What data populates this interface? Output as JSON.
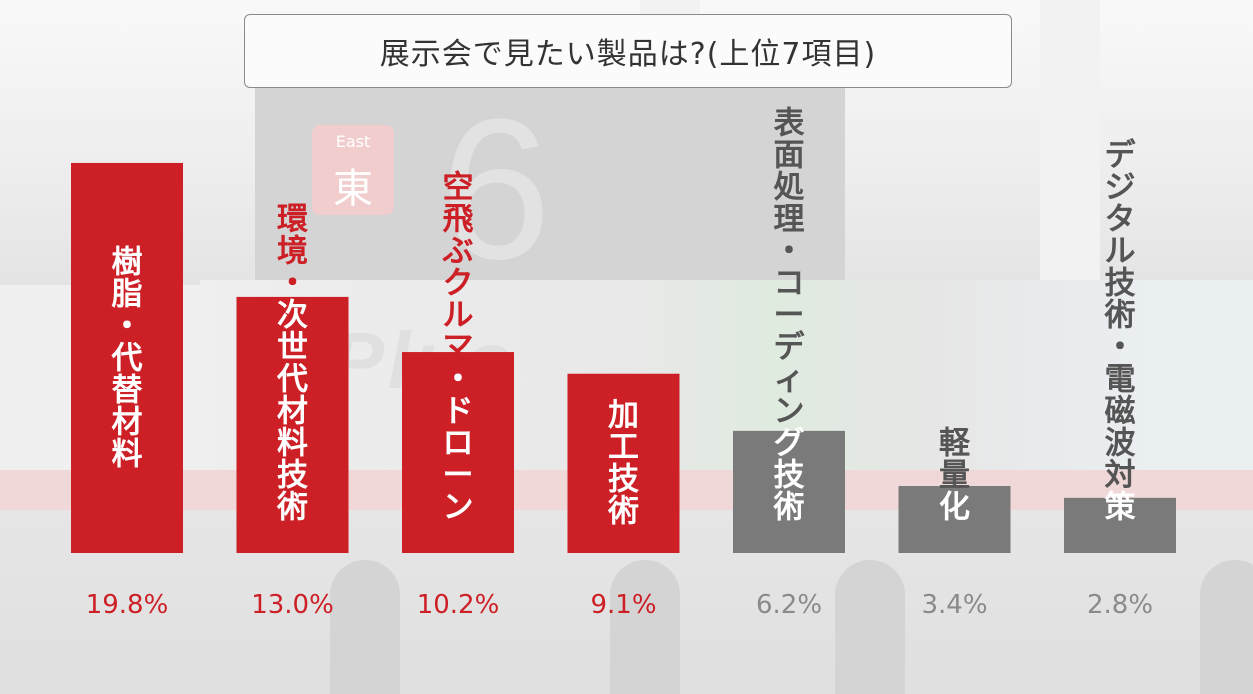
{
  "title": "展示会で見たい製品は?(上位7項目)",
  "background": {
    "sign_small": "East",
    "sign_kanji": "東",
    "sign_number": "6",
    "banner_logo": "-Plus"
  },
  "colors": {
    "highlight": "#cc1f26",
    "muted": "#7a7a7a",
    "value_highlight": "#cc1f26",
    "value_muted": "#8a8a8a"
  },
  "chart_data": {
    "type": "bar",
    "categories": [
      "樹脂・代替材料",
      "環境・次世代材料技術",
      "空飛ぶクルマ・ドローン",
      "加工技術",
      "表面処理・コーディング技術",
      "軽量化",
      "デジタル技術・電磁波対策"
    ],
    "values": [
      19.8,
      13.0,
      10.2,
      9.1,
      6.2,
      3.4,
      2.8
    ],
    "value_labels": [
      "19.8%",
      "13.0%",
      "10.2%",
      "9.1%",
      "6.2%",
      "3.4%",
      "2.8%"
    ],
    "highlighted": [
      true,
      true,
      true,
      true,
      false,
      false,
      false
    ],
    "unit": "%",
    "ylim": [
      0,
      20
    ],
    "grid": false,
    "legend": "none"
  }
}
